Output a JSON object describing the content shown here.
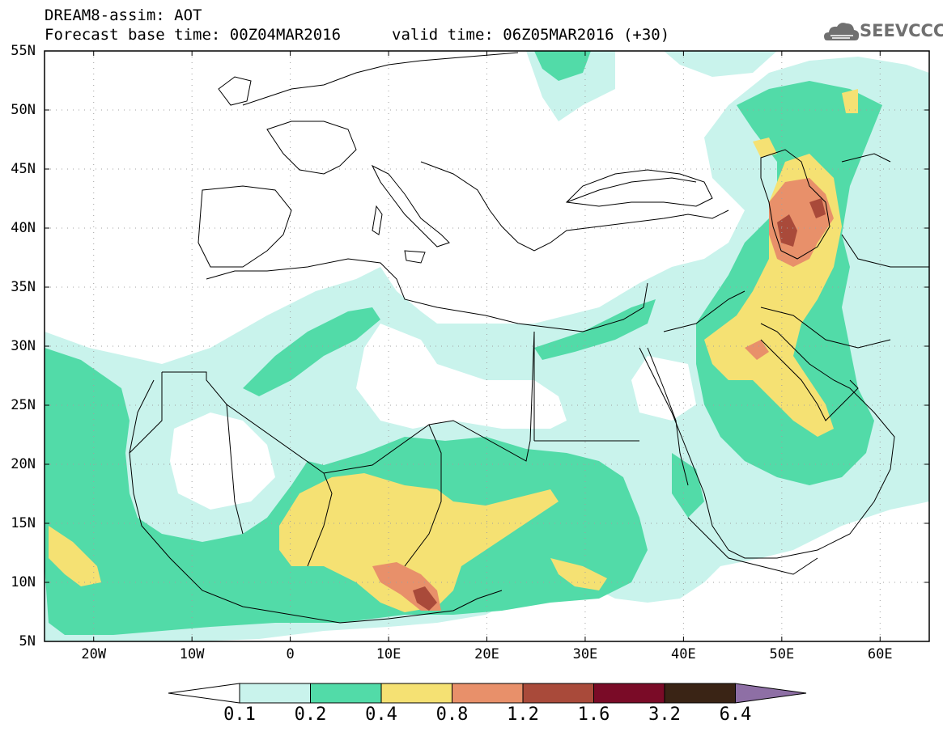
{
  "header": {
    "title_line1": "DREAM8-assim: AOT",
    "title_line2": "Forecast base time: 00Z04MAR2016",
    "valid_time": "valid time: 06Z05MAR2016 (+30)",
    "logo_text": "SEEVCCC"
  },
  "map": {
    "lon_labels": [
      "20W",
      "10W",
      "0",
      "10E",
      "20E",
      "30E",
      "40E",
      "50E",
      "60E"
    ],
    "lat_labels": [
      "55N",
      "50N",
      "45N",
      "40N",
      "35N",
      "30N",
      "25N",
      "20N",
      "15N",
      "10N",
      "5N"
    ]
  },
  "colorbar": {
    "labels": [
      "0.1",
      "0.2",
      "0.4",
      "0.8",
      "1.2",
      "1.6",
      "3.2",
      "6.4"
    ],
    "colors": [
      "#ffffff",
      "#c9f3ec",
      "#52dba8",
      "#f5e173",
      "#e8906a",
      "#a94a3a",
      "#7a0b27",
      "#3a2415",
      "#8e6fa5"
    ]
  },
  "colors": {
    "aot_0_1": "#c9f3ec",
    "aot_0_2": "#52dba8",
    "aot_0_4": "#f5e173",
    "aot_0_8": "#e8906a",
    "aot_1_2": "#a94a3a"
  }
}
